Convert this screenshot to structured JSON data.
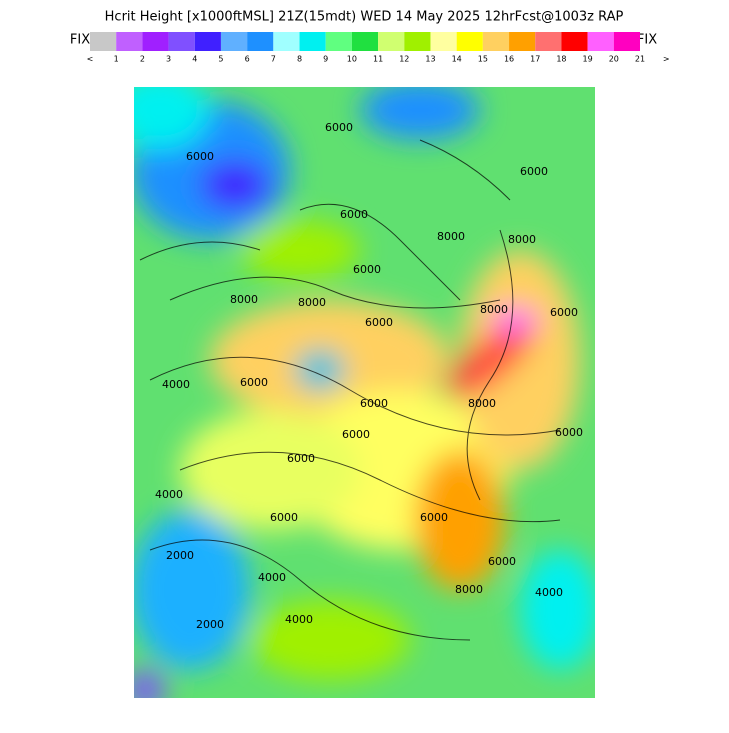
{
  "header": {
    "title": "Hcrit Height [x1000ftMSL] 21Z(15mdt) WED 14 May 2025 12hrFcst@1003z RAP",
    "fix_left": "FIX",
    "fix_right": "FIX"
  },
  "colorbar": {
    "colors": [
      "#c8c8c8",
      "#c060ff",
      "#a020ff",
      "#8050ff",
      "#4020ff",
      "#60b0ff",
      "#1e90ff",
      "#a0ffff",
      "#00f0f0",
      "#60ff80",
      "#20e040",
      "#d0ff70",
      "#a0f000",
      "#ffffa0",
      "#ffff00",
      "#ffd060",
      "#ffa000",
      "#ff7070",
      "#ff0000",
      "#ff60ff",
      "#ff00c0"
    ],
    "labels": [
      "<",
      "1",
      "2",
      "3",
      "4",
      "5",
      "6",
      "7",
      "8",
      "9",
      "10",
      "11",
      "12",
      "13",
      "14",
      "15",
      "16",
      "17",
      "18",
      "19",
      "20",
      "21",
      ">"
    ]
  },
  "contour_labels": [
    "6000",
    "6000",
    "6000",
    "8000",
    "6000",
    "6000",
    "8000",
    "8000",
    "8000",
    "8000",
    "4000",
    "6000",
    "6000",
    "6000",
    "6000",
    "8000",
    "6000",
    "6000",
    "6000",
    "2000",
    "6000",
    "4000",
    "4000",
    "2000",
    "6000",
    "6000",
    "4000",
    "4000",
    "8000"
  ]
}
